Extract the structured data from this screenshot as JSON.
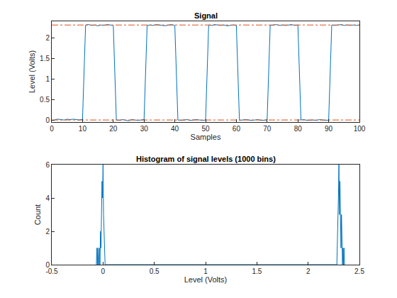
{
  "chart_data": [
    {
      "type": "line",
      "title": "Signal",
      "x_label": "Samples",
      "y_label": "Level (Volts)",
      "xlim": [
        0,
        100
      ],
      "xticks": [
        0,
        10,
        20,
        30,
        40,
        50,
        60,
        70,
        80,
        90,
        100
      ],
      "ylim": [
        -0.05,
        2.4
      ],
      "yticks": [
        0,
        0.5,
        1,
        1.5,
        2
      ],
      "grid": false,
      "series": [
        {
          "color": "#0072bd",
          "line_style": "solid",
          "x": [
            1,
            2,
            3,
            4,
            5,
            6,
            7,
            8,
            9,
            10,
            11,
            12,
            13,
            14,
            15,
            16,
            17,
            18,
            19,
            20,
            21,
            22,
            23,
            24,
            25,
            26,
            27,
            28,
            29,
            30,
            31,
            32,
            33,
            34,
            35,
            36,
            37,
            38,
            39,
            40,
            41,
            42,
            43,
            44,
            45,
            46,
            47,
            48,
            49,
            50,
            51,
            52,
            53,
            54,
            55,
            56,
            57,
            58,
            59,
            60,
            61,
            62,
            63,
            64,
            65,
            66,
            67,
            68,
            69,
            70,
            71,
            72,
            73,
            74,
            75,
            76,
            77,
            78,
            79,
            80,
            81,
            82,
            83,
            84,
            85,
            86,
            87,
            88,
            89,
            90,
            91,
            92,
            93,
            94,
            95,
            96,
            97,
            98,
            99,
            100
          ],
          "values": [
            0.01,
            0.02,
            0.01,
            0.0,
            0.02,
            0.01,
            0.02,
            0.01,
            0.0,
            0.02,
            2.31,
            2.32,
            2.3,
            2.31,
            2.29,
            2.31,
            2.3,
            2.32,
            2.31,
            2.3,
            0.0,
            -0.01,
            0.01,
            0.0,
            -0.02,
            0.01,
            0.0,
            -0.01,
            0.0,
            0.01,
            2.3,
            2.31,
            2.3,
            2.32,
            2.31,
            2.3,
            2.29,
            2.31,
            2.32,
            2.3,
            0.0,
            -0.01,
            0.0,
            0.01,
            -0.01,
            0.0,
            0.01,
            0.0,
            -0.01,
            0.0,
            2.31,
            2.3,
            2.32,
            2.31,
            2.3,
            2.31,
            2.29,
            2.3,
            2.31,
            2.3,
            -0.01,
            0.0,
            0.01,
            0.0,
            -0.01,
            0.0,
            0.01,
            -0.01,
            0.0,
            0.0,
            2.3,
            2.31,
            2.32,
            2.3,
            2.31,
            2.3,
            2.31,
            2.32,
            2.3,
            2.31,
            0.0,
            0.01,
            -0.01,
            0.0,
            0.0,
            -0.01,
            0.01,
            0.0,
            -0.01,
            0.0,
            2.31,
            2.3,
            2.31,
            2.32,
            2.3,
            2.31,
            2.3,
            2.31,
            2.3,
            2.31
          ]
        },
        {
          "color": "#d95319",
          "line_style": "dashdot",
          "x": [
            0,
            100
          ],
          "values": [
            2.31,
            2.31
          ]
        },
        {
          "color": "#d95319",
          "line_style": "dashdot",
          "x": [
            0,
            100
          ],
          "values": [
            0,
            0
          ]
        }
      ]
    },
    {
      "type": "line",
      "title": "Histogram of signal levels (1000 bins)",
      "x_label": "Level (Volts)",
      "y_label": "Count",
      "xlim": [
        -0.5,
        2.5
      ],
      "xticks": [
        -0.5,
        0,
        0.5,
        1,
        1.5,
        2,
        2.5
      ],
      "ylim": [
        0,
        6
      ],
      "yticks": [
        0,
        2,
        4,
        6
      ],
      "grid": false,
      "series": [
        {
          "color": "#0072bd",
          "line_style": "solid",
          "x": [
            -0.065,
            -0.06,
            -0.055,
            -0.05,
            -0.045,
            -0.04,
            -0.035,
            -0.03,
            -0.025,
            -0.02,
            -0.015,
            -0.01,
            -0.005,
            0,
            0.005,
            0.01,
            0.015,
            0.02,
            2.28,
            2.285,
            2.29,
            2.295,
            2.3,
            2.305,
            2.31,
            2.315,
            2.32,
            2.325,
            2.33,
            2.335,
            2.34,
            2.345,
            2.35,
            2.355
          ],
          "values": [
            0,
            1,
            0,
            1,
            0,
            0,
            1,
            0,
            2,
            1,
            3,
            5,
            4,
            6,
            3,
            2,
            1,
            0,
            0,
            1,
            2,
            4,
            6,
            3,
            5,
            2,
            1,
            3,
            1,
            0,
            1,
            0,
            1,
            0
          ]
        }
      ]
    }
  ]
}
